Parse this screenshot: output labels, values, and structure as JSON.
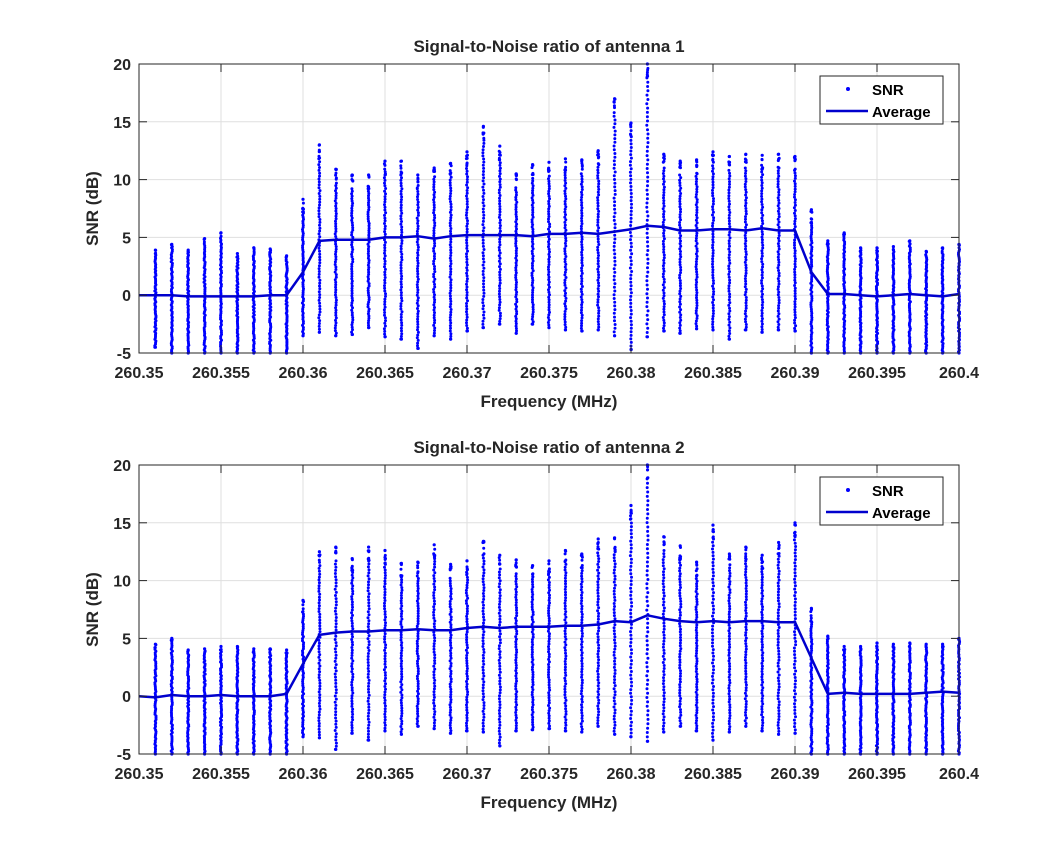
{
  "chart_data": [
    {
      "type": "scatter",
      "title": "Signal-to-Noise ratio of antenna 1",
      "xlabel": "Frequency (MHz)",
      "ylabel": "SNR (dB)",
      "xlim": [
        260.35,
        260.4
      ],
      "ylim": [
        -5,
        20
      ],
      "xticks": [
        "260.35",
        "260.355",
        "260.36",
        "260.365",
        "260.37",
        "260.375",
        "260.38",
        "260.385",
        "260.39",
        "260.395",
        "260.4"
      ],
      "yticks": [
        "-5",
        "0",
        "5",
        "10",
        "15",
        "20"
      ],
      "grid": true,
      "legend": {
        "position": "top-right",
        "entries": [
          "SNR",
          "Average"
        ]
      },
      "series": [
        {
          "name": "SNR",
          "style": "points",
          "x": [
            260.351,
            260.352,
            260.353,
            260.354,
            260.355,
            260.356,
            260.357,
            260.358,
            260.359,
            260.36,
            260.361,
            260.362,
            260.363,
            260.364,
            260.365,
            260.366,
            260.367,
            260.368,
            260.369,
            260.37,
            260.371,
            260.372,
            260.373,
            260.374,
            260.375,
            260.376,
            260.377,
            260.378,
            260.379,
            260.38,
            260.381,
            260.382,
            260.383,
            260.384,
            260.385,
            260.386,
            260.387,
            260.388,
            260.389,
            260.39,
            260.391,
            260.392,
            260.393,
            260.394,
            260.395,
            260.396,
            260.397,
            260.398,
            260.399,
            260.4
          ],
          "ymin": [
            -4.5,
            -5,
            -5,
            -5,
            -5,
            -5,
            -5,
            -5,
            -5,
            -3.5,
            -3.2,
            -3.5,
            -3.4,
            -2.8,
            -3.6,
            -3.8,
            -4.6,
            -3.5,
            -3.8,
            -3.1,
            -2.8,
            -2.5,
            -3.3,
            -2.5,
            -2.8,
            -3,
            -3.1,
            -3,
            -3.5,
            -4.7,
            -3.6,
            -3.1,
            -3.3,
            -2.9,
            -3,
            -3.8,
            -3,
            -3.2,
            -3,
            -3.1,
            -5,
            -5,
            -5,
            -5,
            -5,
            -5,
            -5,
            -5,
            -5,
            -5
          ],
          "ymax": [
            3.9,
            4.4,
            3.9,
            4.9,
            5.4,
            3.6,
            4.1,
            4.0,
            3.4,
            8.3,
            13.0,
            10.9,
            10.4,
            10.4,
            11.6,
            11.6,
            10.4,
            11.0,
            11.4,
            12.4,
            14.6,
            12.9,
            10.5,
            11.3,
            11.5,
            11.8,
            11.7,
            12.5,
            17.0,
            14.9,
            20.0,
            12.2,
            11.6,
            11.7,
            12.4,
            12.0,
            12.2,
            12.1,
            12.2,
            12.0,
            7.4,
            4.7,
            5.4,
            4.1,
            4.1,
            4.2,
            4.7,
            3.8,
            4.1,
            4.4
          ]
        },
        {
          "name": "Average",
          "style": "line",
          "x": [
            260.35,
            260.351,
            260.352,
            260.353,
            260.354,
            260.355,
            260.356,
            260.357,
            260.358,
            260.359,
            260.36,
            260.361,
            260.362,
            260.363,
            260.364,
            260.365,
            260.366,
            260.367,
            260.368,
            260.369,
            260.37,
            260.371,
            260.372,
            260.373,
            260.374,
            260.375,
            260.376,
            260.377,
            260.378,
            260.379,
            260.38,
            260.381,
            260.382,
            260.383,
            260.384,
            260.385,
            260.386,
            260.387,
            260.388,
            260.389,
            260.39,
            260.391,
            260.392,
            260.393,
            260.394,
            260.395,
            260.396,
            260.397,
            260.398,
            260.399,
            260.4
          ],
          "y": [
            0.0,
            0.0,
            0.0,
            -0.1,
            -0.1,
            -0.1,
            -0.1,
            -0.1,
            0.0,
            0.0,
            2.0,
            4.7,
            4.8,
            4.8,
            4.8,
            5.0,
            5.0,
            5.1,
            4.9,
            5.1,
            5.2,
            5.2,
            5.2,
            5.2,
            5.1,
            5.3,
            5.3,
            5.4,
            5.3,
            5.5,
            5.7,
            6.0,
            5.9,
            5.6,
            5.6,
            5.7,
            5.7,
            5.6,
            5.8,
            5.6,
            5.6,
            2.0,
            0.1,
            0.1,
            0.0,
            -0.1,
            0.0,
            0.1,
            0.0,
            -0.1,
            0.1
          ]
        }
      ]
    },
    {
      "type": "scatter",
      "title": "Signal-to-Noise ratio of antenna 2",
      "xlabel": "Frequency (MHz)",
      "ylabel": "SNR (dB)",
      "xlim": [
        260.35,
        260.4
      ],
      "ylim": [
        -5,
        20
      ],
      "xticks": [
        "260.35",
        "260.355",
        "260.36",
        "260.365",
        "260.37",
        "260.375",
        "260.38",
        "260.385",
        "260.39",
        "260.395",
        "260.4"
      ],
      "yticks": [
        "-5",
        "0",
        "5",
        "10",
        "15",
        "20"
      ],
      "grid": true,
      "legend": {
        "position": "top-right",
        "entries": [
          "SNR",
          "Average"
        ]
      },
      "series": [
        {
          "name": "SNR",
          "style": "points",
          "x": [
            260.351,
            260.352,
            260.353,
            260.354,
            260.355,
            260.356,
            260.357,
            260.358,
            260.359,
            260.36,
            260.361,
            260.362,
            260.363,
            260.364,
            260.365,
            260.366,
            260.367,
            260.368,
            260.369,
            260.37,
            260.371,
            260.372,
            260.373,
            260.374,
            260.375,
            260.376,
            260.377,
            260.378,
            260.379,
            260.38,
            260.381,
            260.382,
            260.383,
            260.384,
            260.385,
            260.386,
            260.387,
            260.388,
            260.389,
            260.39,
            260.391,
            260.392,
            260.393,
            260.394,
            260.395,
            260.396,
            260.397,
            260.398,
            260.399,
            260.4
          ],
          "ymin": [
            -5,
            -5,
            -5,
            -5,
            -5,
            -5,
            -5,
            -5,
            -5,
            -3.5,
            -3.6,
            -4.6,
            -3.2,
            -3.8,
            -3.0,
            -3.3,
            -2.6,
            -2.8,
            -3.2,
            -3.0,
            -3.1,
            -4.3,
            -3.0,
            -2.9,
            -2.8,
            -3.0,
            -3.1,
            -2.6,
            -3.3,
            -3.5,
            -3.9,
            -3.1,
            -2.6,
            -3.0,
            -3.8,
            -3.1,
            -2.6,
            -3.0,
            -3.3,
            -3.2,
            -5,
            -5,
            -5,
            -5,
            -5,
            -5,
            -5,
            -5,
            -5,
            -5
          ],
          "ymax": [
            4.5,
            5.0,
            4.0,
            4.1,
            4.3,
            4.3,
            4.1,
            4.1,
            4.0,
            8.3,
            12.5,
            12.9,
            11.9,
            12.9,
            12.6,
            11.5,
            11.6,
            13.1,
            11.4,
            11.7,
            13.4,
            12.2,
            11.8,
            11.3,
            11.7,
            12.6,
            12.3,
            13.6,
            13.7,
            16.5,
            20.0,
            13.8,
            13.0,
            11.6,
            14.8,
            12.3,
            12.9,
            12.2,
            13.3,
            15.0,
            7.6,
            5.2,
            4.3,
            4.3,
            4.6,
            4.5,
            4.6,
            4.5,
            4.5,
            5.0
          ]
        },
        {
          "name": "Average",
          "style": "line",
          "x": [
            260.35,
            260.351,
            260.352,
            260.353,
            260.354,
            260.355,
            260.356,
            260.357,
            260.358,
            260.359,
            260.36,
            260.361,
            260.362,
            260.363,
            260.364,
            260.365,
            260.366,
            260.367,
            260.368,
            260.369,
            260.37,
            260.371,
            260.372,
            260.373,
            260.374,
            260.375,
            260.376,
            260.377,
            260.378,
            260.379,
            260.38,
            260.381,
            260.382,
            260.383,
            260.384,
            260.385,
            260.386,
            260.387,
            260.388,
            260.389,
            260.39,
            260.391,
            260.392,
            260.393,
            260.394,
            260.395,
            260.396,
            260.397,
            260.398,
            260.399,
            260.4
          ],
          "y": [
            0.0,
            -0.1,
            0.1,
            0.0,
            0.0,
            0.1,
            0.0,
            0.0,
            0.0,
            0.2,
            2.8,
            5.3,
            5.5,
            5.6,
            5.6,
            5.7,
            5.7,
            5.8,
            5.7,
            5.7,
            5.9,
            6.0,
            5.9,
            6.0,
            6.0,
            6.0,
            6.1,
            6.1,
            6.2,
            6.5,
            6.4,
            7.0,
            6.7,
            6.5,
            6.4,
            6.5,
            6.4,
            6.5,
            6.5,
            6.4,
            6.4,
            3.3,
            0.2,
            0.3,
            0.2,
            0.2,
            0.2,
            0.2,
            0.3,
            0.4,
            0.3
          ]
        }
      ]
    }
  ]
}
